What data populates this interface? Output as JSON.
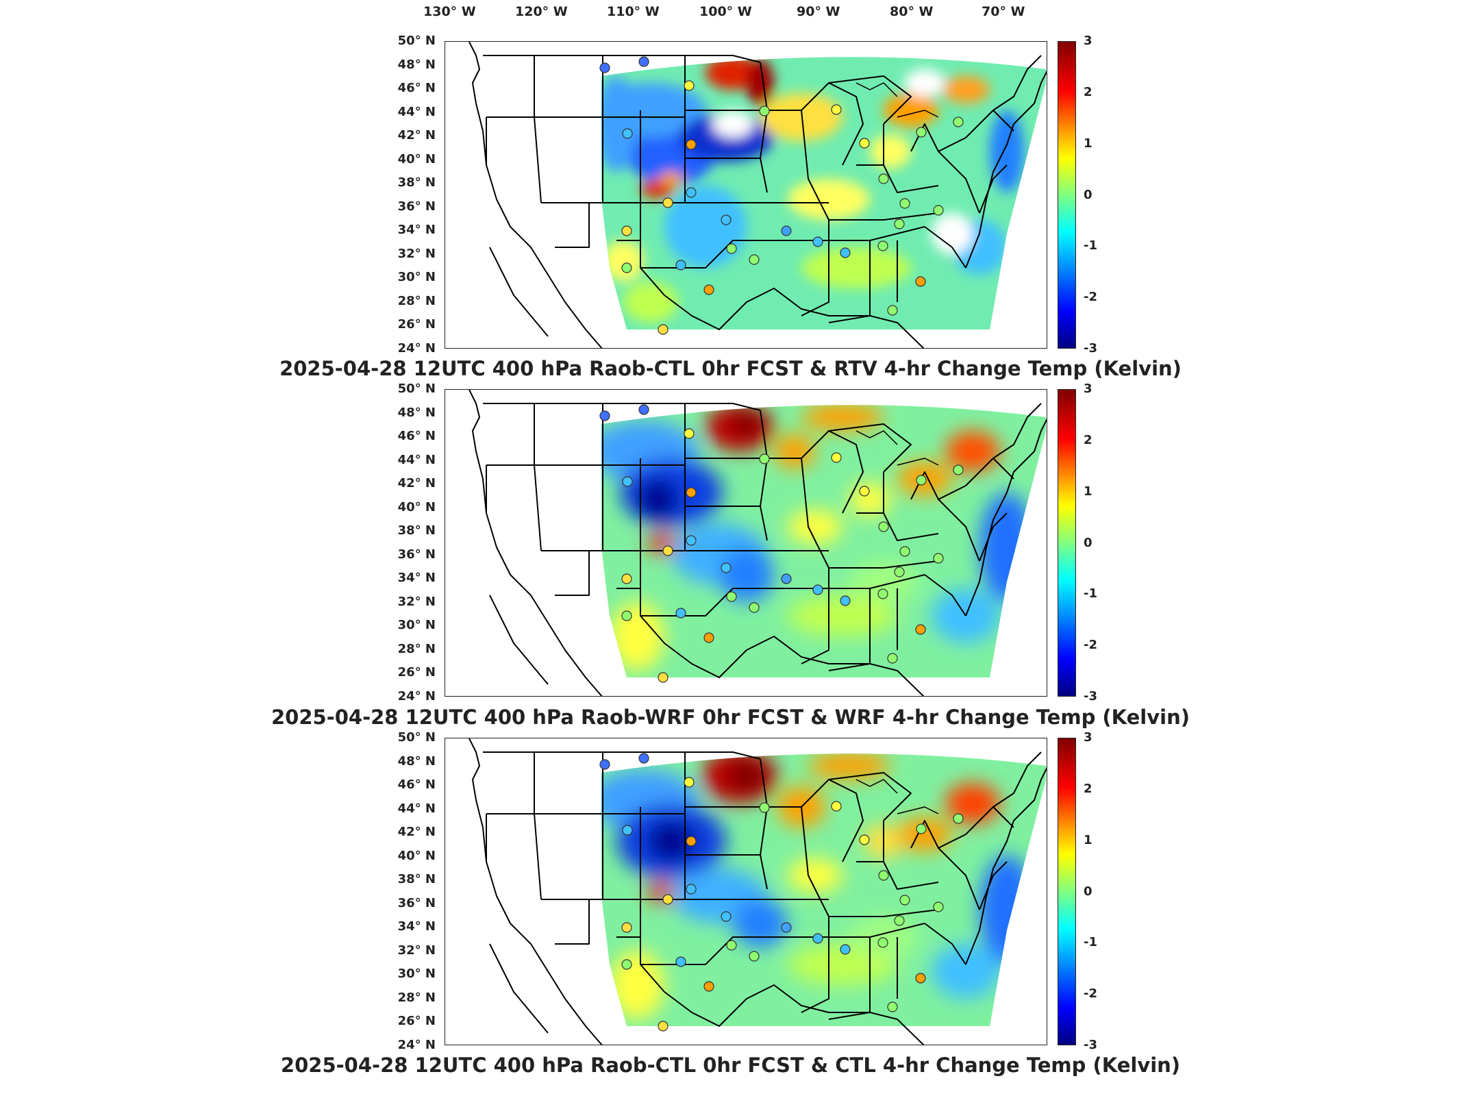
{
  "longitude_labels": [
    "130° W",
    "120° W",
    "110° W",
    "100° W",
    "90° W",
    "80° W",
    "70° W"
  ],
  "latitude_labels": [
    "50° N",
    "48° N",
    "46° N",
    "44° N",
    "42° N",
    "40° N",
    "38° N",
    "36° N",
    "34° N",
    "32° N",
    "30° N",
    "28° N",
    "26° N",
    "24° N"
  ],
  "colorbar": {
    "ticks": [
      "3",
      "2",
      "1",
      "0",
      "-1",
      "-2",
      "-3"
    ],
    "range": [
      -3,
      3
    ],
    "colormap": "jet"
  },
  "panels": [
    {
      "title": "2025-04-28 12UTC 400 hPa Raob-CTL 0hr FCST & RTV 4-hr Change Temp (Kelvin)"
    },
    {
      "title": "2025-04-28 12UTC 400 hPa Raob-WRF 0hr FCST & WRF 4-hr Change Temp (Kelvin)"
    },
    {
      "title": "2025-04-28 12UTC 400 hPa Raob-CTL 0hr FCST & CTL 4-hr Change Temp (Kelvin)"
    }
  ],
  "colors": {
    "dark_red": "#800000",
    "red": "#ff2000",
    "orange": "#ffa000",
    "yellow": "#ffff30",
    "green": "#90ff70",
    "cyan": "#40e0ff",
    "light_blue": "#40a0ff",
    "blue": "#0040ff",
    "dark_blue": "#000090"
  }
}
